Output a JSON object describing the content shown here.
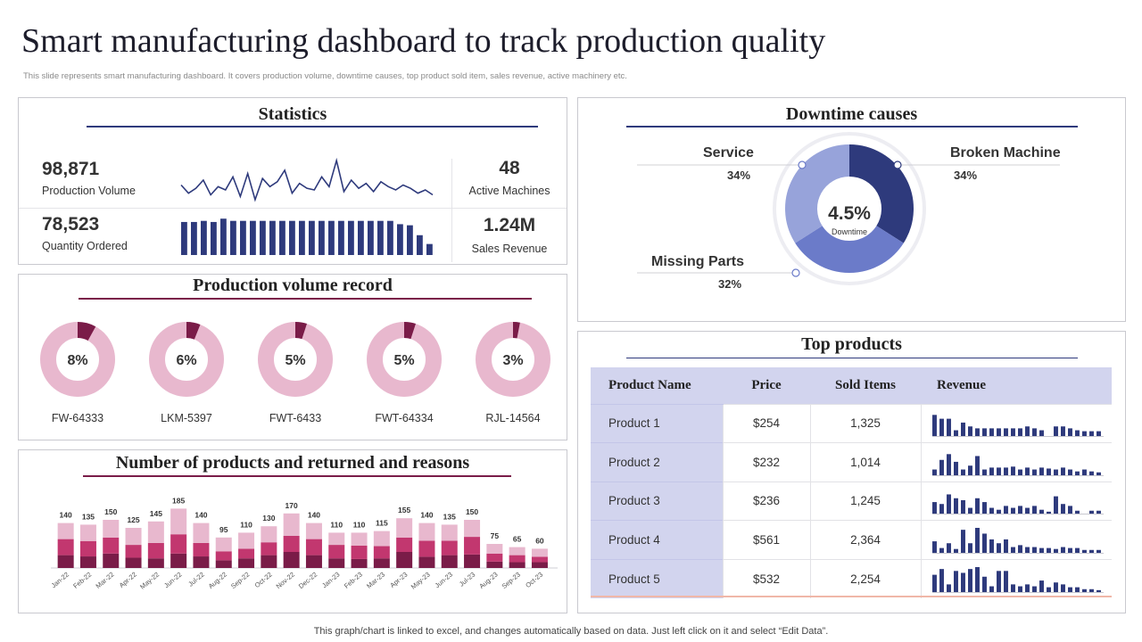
{
  "page": {
    "title": "Smart manufacturing dashboard to track production quality",
    "subtitle": "This slide represents smart manufacturing dashboard. It covers production volume, downtime causes, top product sold item, sales revenue, active machinery etc.",
    "footer": "This graph/chart is linked to excel,  and changes automatically based on data. Just left click on it and select “Edit Data”."
  },
  "colors": {
    "navy": "#2e3a7c",
    "maroon": "#7a1c48",
    "pink": "#c2376f",
    "light_pink": "#e8b8ce",
    "mid_blue": "#6b7bc9",
    "light_blue": "#97a3da",
    "table_blue": "#d2d4ee"
  },
  "statistics": {
    "title": "Statistics",
    "production_volume": {
      "value": "98,871",
      "label": "Production Volume"
    },
    "quantity_ordered": {
      "value": "78,523",
      "label": "Quantity Ordered"
    },
    "active_machines": {
      "value": "48",
      "label": "Active Machines"
    },
    "sales_revenue": {
      "value": "1.24M",
      "label": "Sales Revenue"
    },
    "sparkline": [
      15,
      10,
      13,
      18,
      9,
      14,
      12,
      20,
      8,
      22,
      6,
      19,
      14,
      17,
      24,
      10,
      16,
      13,
      12,
      20,
      14,
      30,
      11,
      18,
      13,
      16,
      11,
      17,
      14,
      12,
      15,
      13,
      10,
      12,
      9
    ],
    "bars": [
      30,
      30,
      31,
      30,
      33,
      31,
      31,
      31,
      31,
      31,
      31,
      31,
      31,
      31,
      31,
      31,
      31,
      31,
      31,
      31,
      31,
      31,
      28,
      27,
      18,
      10
    ]
  },
  "production_volume_record": {
    "title": "Production volume record",
    "items": [
      {
        "label": "FW-64333",
        "value": "8%",
        "pct": 8
      },
      {
        "label": "LKM-5397",
        "value": "6%",
        "pct": 6
      },
      {
        "label": "FWT-6433",
        "value": "5%",
        "pct": 5
      },
      {
        "label": "FWT-64334",
        "value": "5%",
        "pct": 5
      },
      {
        "label": "RJL-14564",
        "value": "3%",
        "pct": 3
      }
    ]
  },
  "returns": {
    "title": "Number of products and returned and reasons",
    "chart_data": {
      "type": "bar",
      "stacked": true,
      "categories": [
        "Jan-22",
        "Feb-22",
        "Mar-22",
        "Apr-22",
        "May-22",
        "Jun-22",
        "Jul-22",
        "Aug-22",
        "Sep-22",
        "Oct-22",
        "Nov-22",
        "Dec-22",
        "Jan-23",
        "Feb-23",
        "Mar-23",
        "Apr-23",
        "May-23",
        "Jun-23",
        "Jul-23",
        "Aug-23",
        "Sep-23",
        "Oct-23"
      ],
      "totals": [
        140,
        135,
        150,
        125,
        145,
        185,
        140,
        95,
        110,
        130,
        170,
        140,
        110,
        110,
        115,
        155,
        140,
        135,
        150,
        75,
        65,
        60
      ],
      "total_labels": [
        "140",
        "135",
        "150",
        "125",
        "145",
        "185",
        "140",
        "95",
        "110",
        "130",
        "170",
        "140",
        "110",
        "110",
        "115",
        "155",
        "140",
        "135",
        "150",
        "75",
        "65",
        "60"
      ],
      "series": [
        {
          "name": "Series 1",
          "values": [
            40,
            36,
            45,
            32,
            30,
            45,
            36,
            24,
            30,
            40,
            50,
            40,
            30,
            28,
            30,
            50,
            35,
            40,
            42,
            20,
            18,
            18
          ]
        },
        {
          "name": "Series 2",
          "values": [
            50,
            48,
            50,
            40,
            48,
            60,
            42,
            28,
            30,
            40,
            50,
            50,
            42,
            42,
            38,
            45,
            50,
            45,
            55,
            25,
            22,
            17
          ]
        },
        {
          "name": "Series 3",
          "values": [
            50,
            51,
            55,
            53,
            67,
            80,
            62,
            43,
            50,
            50,
            70,
            50,
            38,
            40,
            47,
            60,
            55,
            50,
            53,
            30,
            25,
            25
          ]
        }
      ],
      "ylim": [
        0,
        190
      ]
    }
  },
  "downtime": {
    "title": "Downtime causes",
    "center_value": "4.5%",
    "center_label": "Downtime",
    "chart_data": {
      "type": "pie",
      "donut": true,
      "labels": [
        "Broken Machine",
        "Missing Parts",
        "Service"
      ],
      "values": [
        34,
        32,
        34
      ],
      "value_labels": [
        "34%",
        "32%",
        "34%"
      ]
    }
  },
  "top_products": {
    "title": "Top  products",
    "headers": [
      "Product Name",
      "Price",
      "Sold Items",
      "Revenue"
    ],
    "rows": [
      {
        "name": "Product 1",
        "price": "$254",
        "sold": "1,325",
        "spark": [
          22,
          18,
          18,
          6,
          14,
          10,
          8,
          8,
          8,
          8,
          8,
          8,
          8,
          10,
          8,
          6,
          0,
          10,
          10,
          8,
          6,
          5,
          5,
          5
        ]
      },
      {
        "name": "Product 2",
        "price": "$232",
        "sold": "1,014",
        "spark": [
          6,
          16,
          22,
          14,
          6,
          10,
          20,
          6,
          8,
          8,
          8,
          9,
          6,
          8,
          6,
          8,
          7,
          6,
          8,
          6,
          4,
          6,
          4,
          3
        ]
      },
      {
        "name": "Product 3",
        "price": "$236",
        "sold": "1,245",
        "spark": [
          12,
          10,
          20,
          16,
          14,
          6,
          16,
          12,
          6,
          4,
          8,
          6,
          8,
          6,
          8,
          4,
          2,
          18,
          10,
          8,
          3,
          0,
          3,
          3
        ]
      },
      {
        "name": "Product 4",
        "price": "$561",
        "sold": "2,364",
        "spark": [
          12,
          5,
          10,
          4,
          24,
          10,
          26,
          20,
          14,
          10,
          14,
          6,
          8,
          6,
          6,
          5,
          5,
          4,
          6,
          5,
          5,
          3,
          3,
          3
        ]
      },
      {
        "name": "Product 5",
        "price": "$532",
        "sold": "2,254",
        "spark": [
          18,
          24,
          8,
          22,
          20,
          24,
          26,
          16,
          6,
          22,
          22,
          8,
          6,
          8,
          6,
          12,
          5,
          10,
          8,
          5,
          5,
          3,
          3,
          2
        ]
      }
    ]
  }
}
